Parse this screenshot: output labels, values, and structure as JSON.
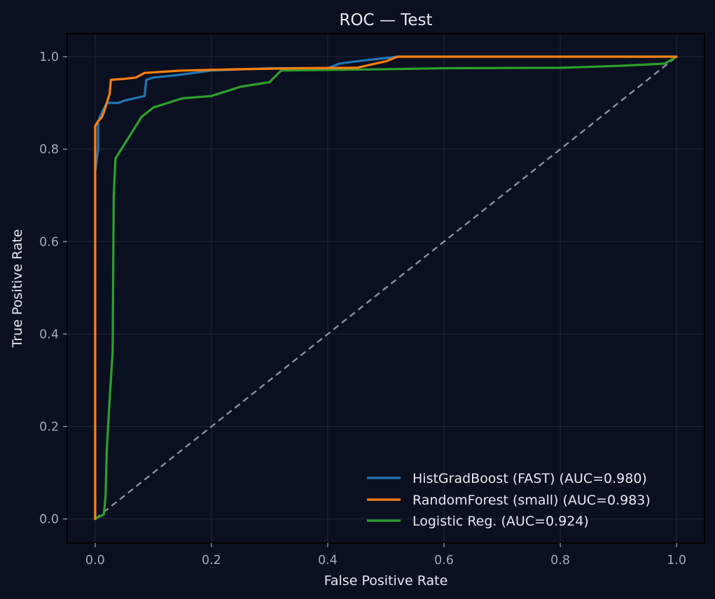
{
  "colors": {
    "background": "#0b1020",
    "grid": "#1e2638",
    "axes": "#000000",
    "diagonal": "#8a8f9e",
    "text": "#e6e8ee",
    "tick_text": "#a3a8b5"
  },
  "chart_data": {
    "type": "line",
    "title": "ROC — Test",
    "xlabel": "False Positive Rate",
    "ylabel": "True Positive Rate",
    "xlim": [
      -0.048,
      1.048
    ],
    "ylim": [
      -0.052,
      1.05
    ],
    "xticks": [
      "0.0",
      "0.2",
      "0.4",
      "0.6",
      "0.8",
      "1.0"
    ],
    "yticks": [
      "0.0",
      "0.2",
      "0.4",
      "0.6",
      "0.8",
      "1.0"
    ],
    "grid": true,
    "legend_position": "lower-right",
    "series": [
      {
        "name": "HistGradBoost (FAST) (AUC=0.980)",
        "color": "#1f77b4",
        "points": [
          [
            0,
            0
          ],
          [
            0,
            0.75
          ],
          [
            0.005,
            0.8
          ],
          [
            0.005,
            0.86
          ],
          [
            0.012,
            0.88
          ],
          [
            0.02,
            0.9
          ],
          [
            0.04,
            0.9
          ],
          [
            0.05,
            0.905
          ],
          [
            0.085,
            0.915
          ],
          [
            0.088,
            0.95
          ],
          [
            0.1,
            0.955
          ],
          [
            0.14,
            0.96
          ],
          [
            0.2,
            0.97
          ],
          [
            0.3,
            0.975
          ],
          [
            0.4,
            0.975
          ],
          [
            0.42,
            0.985
          ],
          [
            0.45,
            0.99
          ],
          [
            0.52,
            1.0
          ],
          [
            1.0,
            1.0
          ]
        ]
      },
      {
        "name": "RandomForest (small) (AUC=0.983)",
        "color": "#ff7f0e",
        "points": [
          [
            0,
            0
          ],
          [
            0,
            0.85
          ],
          [
            0.005,
            0.86
          ],
          [
            0.012,
            0.87
          ],
          [
            0.015,
            0.88
          ],
          [
            0.02,
            0.9
          ],
          [
            0.025,
            0.92
          ],
          [
            0.027,
            0.95
          ],
          [
            0.05,
            0.952
          ],
          [
            0.07,
            0.955
          ],
          [
            0.085,
            0.965
          ],
          [
            0.15,
            0.97
          ],
          [
            0.25,
            0.973
          ],
          [
            0.35,
            0.975
          ],
          [
            0.45,
            0.976
          ],
          [
            0.5,
            0.99
          ],
          [
            0.52,
            1.0
          ],
          [
            1.0,
            1.0
          ]
        ]
      },
      {
        "name": "Logistic Reg. (AUC=0.924)",
        "color": "#2ca02c",
        "points": [
          [
            0,
            0
          ],
          [
            0.015,
            0.01
          ],
          [
            0.018,
            0.05
          ],
          [
            0.02,
            0.15
          ],
          [
            0.025,
            0.26
          ],
          [
            0.03,
            0.36
          ],
          [
            0.032,
            0.7
          ],
          [
            0.035,
            0.78
          ],
          [
            0.045,
            0.8
          ],
          [
            0.06,
            0.83
          ],
          [
            0.08,
            0.87
          ],
          [
            0.1,
            0.89
          ],
          [
            0.15,
            0.91
          ],
          [
            0.2,
            0.915
          ],
          [
            0.25,
            0.935
          ],
          [
            0.3,
            0.945
          ],
          [
            0.32,
            0.97
          ],
          [
            0.5,
            0.973
          ],
          [
            0.6,
            0.975
          ],
          [
            0.8,
            0.976
          ],
          [
            0.9,
            0.98
          ],
          [
            0.98,
            0.985
          ],
          [
            1.0,
            1.0
          ]
        ]
      }
    ],
    "diagonal": [
      [
        0,
        0
      ],
      [
        1,
        1
      ]
    ]
  }
}
